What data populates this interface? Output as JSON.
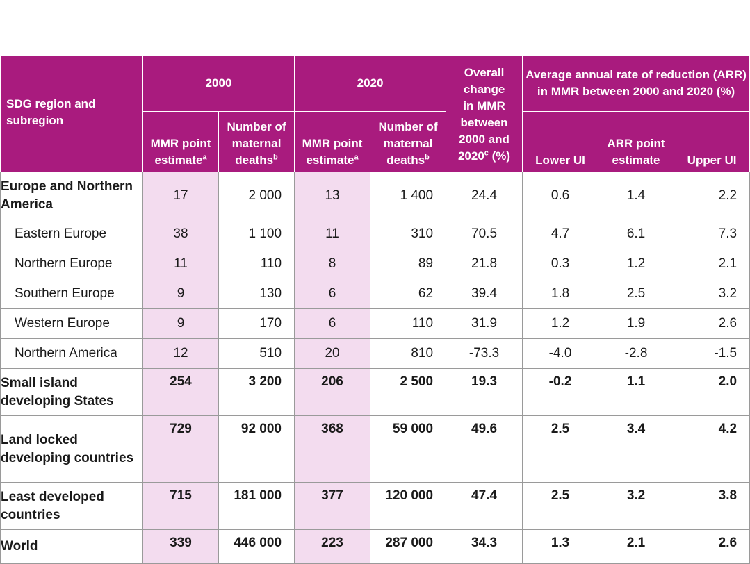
{
  "headers": {
    "region": "SDG region and subregion",
    "y2000": "2000",
    "y2020": "2020",
    "overall_lines": [
      "Overall",
      "change",
      "in MMR",
      "between",
      "2000 and"
    ],
    "overall_last": "2020",
    "overall_sup": "c",
    "overall_unit": " (%)",
    "arr": "Average annual rate of reduction (ARR) in MMR between 2000 and 2020 (%)",
    "mmr_line1": "MMR point",
    "mmr_line2": "estimate",
    "mmr_sup": "a",
    "deaths_line1": "Number of",
    "deaths_line2": "maternal",
    "deaths_line3": "deaths",
    "deaths_sup": "b",
    "lower": "Lower UI",
    "arr_point_1": "ARR point",
    "arr_point_2": "estimate",
    "upper": "Upper UI"
  },
  "rows": [
    {
      "region": "Europe and Northern America",
      "mmr2000": "17",
      "deaths2000": "2 000",
      "mmr2020": "13",
      "deaths2020": "1 400",
      "change": "24.4",
      "lower": "0.6",
      "arr": "1.4",
      "upper": "2.2"
    },
    {
      "region": "Eastern Europe",
      "mmr2000": "38",
      "deaths2000": "1 100",
      "mmr2020": "11",
      "deaths2020": "310",
      "change": "70.5",
      "lower": "4.7",
      "arr": "6.1",
      "upper": "7.3"
    },
    {
      "region": "Northern Europe",
      "mmr2000": "11",
      "deaths2000": "110",
      "mmr2020": "8",
      "deaths2020": "89",
      "change": "21.8",
      "lower": "0.3",
      "arr": "1.2",
      "upper": "2.1"
    },
    {
      "region": "Southern Europe",
      "mmr2000": "9",
      "deaths2000": "130",
      "mmr2020": "6",
      "deaths2020": "62",
      "change": "39.4",
      "lower": "1.8",
      "arr": "2.5",
      "upper": "3.2"
    },
    {
      "region": "Western Europe",
      "mmr2000": "9",
      "deaths2000": "170",
      "mmr2020": "6",
      "deaths2020": "110",
      "change": "31.9",
      "lower": "1.2",
      "arr": "1.9",
      "upper": "2.6"
    },
    {
      "region": "Northern America",
      "mmr2000": "12",
      "deaths2000": "510",
      "mmr2020": "20",
      "deaths2020": "810",
      "change": "-73.3",
      "lower": "-4.0",
      "arr": "-2.8",
      "upper": "-1.5"
    },
    {
      "region": "Small island developing States",
      "mmr2000": "254",
      "deaths2000": "3 200",
      "mmr2020": "206",
      "deaths2020": "2 500",
      "change": "19.3",
      "lower": "-0.2",
      "arr": "1.1",
      "upper": "2.0"
    },
    {
      "region": "Land locked developing countries",
      "mmr2000": "729",
      "deaths2000": "92 000",
      "mmr2020": "368",
      "deaths2020": "59 000",
      "change": "49.6",
      "lower": "2.5",
      "arr": "3.4",
      "upper": "4.2"
    },
    {
      "region": "Least developed countries",
      "mmr2000": "715",
      "deaths2000": "181 000",
      "mmr2020": "377",
      "deaths2020": "120 000",
      "change": "47.4",
      "lower": "2.5",
      "arr": "3.2",
      "upper": "3.8"
    },
    {
      "region": "World",
      "mmr2000": "339",
      "deaths2000": "446 000",
      "mmr2020": "223",
      "deaths2020": "287 000",
      "change": "34.3",
      "lower": "1.3",
      "arr": "2.1",
      "upper": "2.6"
    }
  ]
}
